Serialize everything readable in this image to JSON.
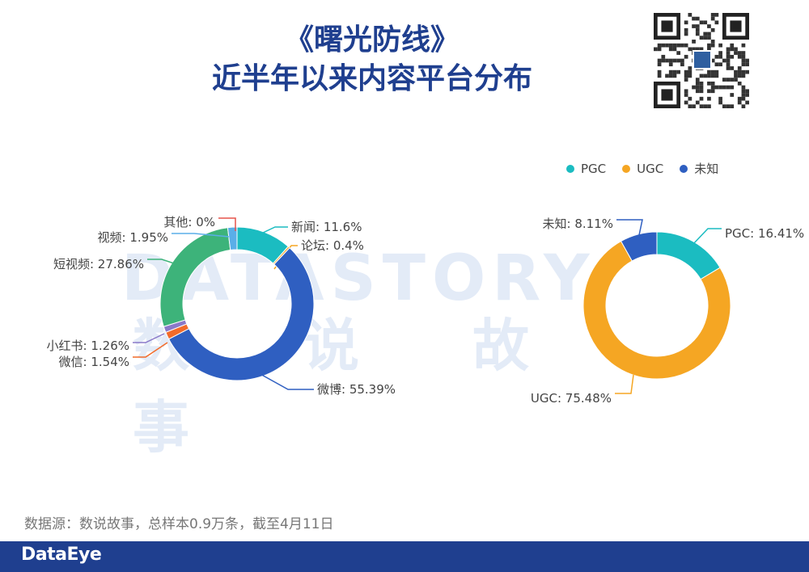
{
  "title": {
    "line1": "《曙光防线》",
    "line2": "近半年以来内容平台分布"
  },
  "watermark": {
    "en": "DATASTORY",
    "cn": "数说故事"
  },
  "legend": [
    {
      "label": "PGC",
      "color": "#1bbcc1"
    },
    {
      "label": "UGC",
      "color": "#f5a623"
    },
    {
      "label": "未知",
      "color": "#2f5fc1"
    }
  ],
  "source": "数据源：数说故事，总样本0.9万条，截至4月11日",
  "brand": "DataEye",
  "chart_data": [
    {
      "type": "pie",
      "variant": "donut",
      "slices": [
        {
          "name": "新闻",
          "value": 11.6,
          "label": "新闻: 11.6%",
          "color": "#1bbcc1"
        },
        {
          "name": "论坛",
          "value": 0.4,
          "label": "论坛: 0.4%",
          "color": "#f5a623"
        },
        {
          "name": "微博",
          "value": 55.39,
          "label": "微博: 55.39%",
          "color": "#2f5fc1"
        },
        {
          "name": "微信",
          "value": 1.54,
          "label": "微信: 1.54%",
          "color": "#f26b2a"
        },
        {
          "name": "小红书",
          "value": 1.26,
          "label": "小红书: 1.26%",
          "color": "#8a79c9"
        },
        {
          "name": "短视频",
          "value": 27.86,
          "label": "短视频: 27.86%",
          "color": "#3db37a"
        },
        {
          "name": "视频",
          "value": 1.95,
          "label": "视频: 1.95%",
          "color": "#5aaee8"
        },
        {
          "name": "其他",
          "value": 0,
          "label": "其他: 0%",
          "color": "#e5534b"
        }
      ]
    },
    {
      "type": "pie",
      "variant": "donut",
      "slices": [
        {
          "name": "PGC",
          "value": 16.41,
          "label": "PGC: 16.41%",
          "color": "#1bbcc1"
        },
        {
          "name": "UGC",
          "value": 75.48,
          "label": "UGC: 75.48%",
          "color": "#f5a623"
        },
        {
          "name": "未知",
          "value": 8.11,
          "label": "未知: 8.11%",
          "color": "#2f5fc1"
        }
      ]
    }
  ]
}
